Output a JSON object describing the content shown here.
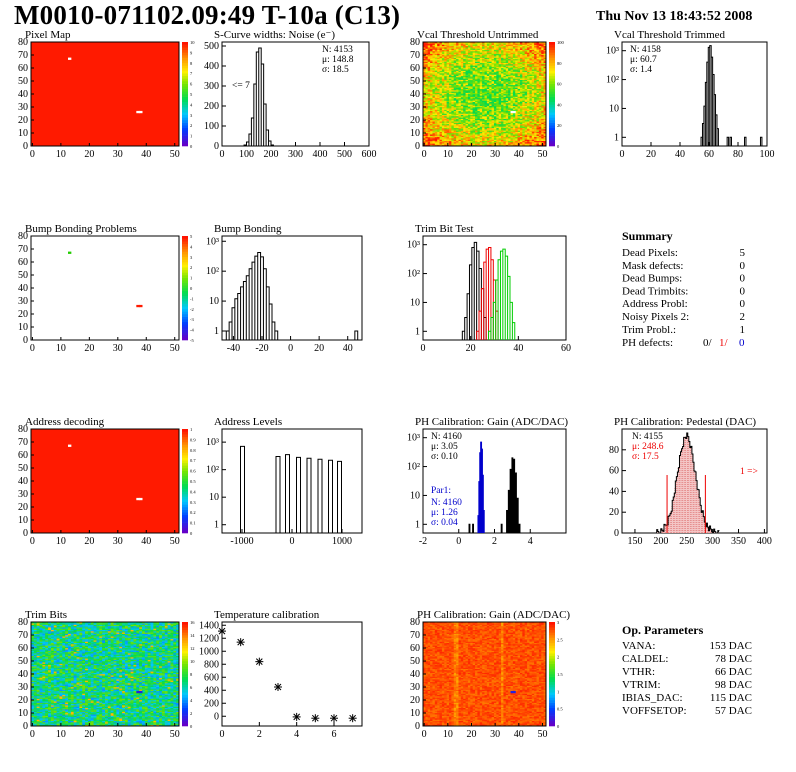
{
  "header": {
    "title": "M0010-071102.09:49 T-10a (C13)",
    "date": "Thu Nov 13 18:43:52 2008"
  },
  "colors": {
    "red": "#ff1a00",
    "black": "#000000",
    "red_line": "#ee0000",
    "green_line": "#00cc00",
    "blue_line": "#0000cc"
  },
  "chart_data": [
    {
      "id": "pixel-map",
      "type": "heatmap",
      "title": "Pixel Map",
      "xlim": [
        0,
        52
      ],
      "ylim": [
        0,
        80
      ],
      "xticks": [
        "0",
        "10",
        "20",
        "30",
        "40",
        "50"
      ],
      "yticks": [
        "0",
        "10",
        "20",
        "30",
        "40",
        "50",
        "60",
        "70",
        "80"
      ],
      "palette_ticks": [
        "0",
        "1",
        "2",
        "3",
        "4",
        "5",
        "6",
        "7",
        "8",
        "9",
        "10"
      ],
      "fill_value": 10,
      "white_pixels": [
        [
          13,
          67
        ],
        [
          37,
          26
        ],
        [
          38,
          26
        ]
      ]
    },
    {
      "id": "scurve",
      "type": "histogram",
      "title": "S-Curve widths: Noise (e⁻)",
      "xlim": [
        0,
        600
      ],
      "ylim": [
        0,
        520
      ],
      "xticks": [
        "0",
        "100",
        "200",
        "300",
        "400",
        "500",
        "600"
      ],
      "yticks": [
        "0",
        "100",
        "200",
        "300",
        "400",
        "500"
      ],
      "stats": [
        "N: 4153",
        "μ: 148.8",
        "σ: 18.5"
      ],
      "annotation": "<= 7",
      "bins": [
        [
          95,
          5
        ],
        [
          105,
          20
        ],
        [
          115,
          60
        ],
        [
          125,
          140
        ],
        [
          135,
          310
        ],
        [
          145,
          470
        ],
        [
          155,
          490
        ],
        [
          165,
          410
        ],
        [
          175,
          210
        ],
        [
          185,
          80
        ],
        [
          195,
          25
        ],
        [
          205,
          5
        ]
      ]
    },
    {
      "id": "vcal-untrimmed",
      "type": "heatmap",
      "title": "Vcal Threshold Untrimmed",
      "xlim": [
        0,
        52
      ],
      "ylim": [
        0,
        80
      ],
      "xticks": [
        "0",
        "10",
        "20",
        "30",
        "40",
        "50"
      ],
      "yticks": [
        "0",
        "10",
        "20",
        "30",
        "40",
        "50",
        "60",
        "70",
        "80"
      ],
      "palette_ticks": [
        "0",
        "20",
        "40",
        "60",
        "80",
        "100"
      ],
      "white_pixels": [
        [
          37,
          26
        ],
        [
          38,
          26
        ]
      ]
    },
    {
      "id": "vcal-trimmed",
      "type": "histogram",
      "title": "Vcal Threshold Trimmed",
      "log": true,
      "xlim": [
        0,
        100
      ],
      "ylim": [
        0.5,
        2000
      ],
      "xticks": [
        "0",
        "20",
        "40",
        "60",
        "80",
        "100"
      ],
      "yticks": [
        "1",
        "10",
        "10²",
        "10³"
      ],
      "stats": [
        "N: 4158",
        "μ: 60.7",
        "σ: 1.4"
      ],
      "bins": [
        [
          55,
          1
        ],
        [
          56,
          3
        ],
        [
          57,
          12
        ],
        [
          58,
          80
        ],
        [
          59,
          400
        ],
        [
          60,
          1300
        ],
        [
          61,
          1500
        ],
        [
          62,
          600
        ],
        [
          63,
          150
        ],
        [
          64,
          30
        ],
        [
          65,
          6
        ],
        [
          66,
          2
        ],
        [
          73,
          1
        ],
        [
          75,
          1
        ],
        [
          85,
          1
        ],
        [
          96,
          1
        ]
      ]
    },
    {
      "id": "bump-problems",
      "type": "heatmap",
      "title": "Bump Bonding Problems",
      "xlim": [
        0,
        52
      ],
      "ylim": [
        0,
        80
      ],
      "xticks": [
        "0",
        "10",
        "20",
        "30",
        "40",
        "50"
      ],
      "yticks": [
        "0",
        "10",
        "20",
        "30",
        "40",
        "50",
        "60",
        "70",
        "80"
      ],
      "palette_ticks": [
        "-5",
        "-4",
        "-3",
        "-2",
        "-1",
        "0",
        "1",
        "2",
        "3",
        "4",
        "5"
      ],
      "green_pixels": [
        [
          13,
          67
        ]
      ],
      "red_pixels": [
        [
          37,
          26
        ],
        [
          38,
          26
        ]
      ]
    },
    {
      "id": "bump-bonding",
      "type": "histogram",
      "title": "Bump Bonding",
      "log": true,
      "xlim": [
        -48,
        50
      ],
      "ylim": [
        0.5,
        1500
      ],
      "xticks": [
        "-40",
        "-20",
        "0",
        "20",
        "40"
      ],
      "yticks": [
        "1",
        "10",
        "10²",
        "10³"
      ],
      "bins": [
        [
          -44,
          1
        ],
        [
          -42,
          2
        ],
        [
          -40,
          6
        ],
        [
          -38,
          12
        ],
        [
          -36,
          18
        ],
        [
          -34,
          30
        ],
        [
          -32,
          45
        ],
        [
          -30,
          70
        ],
        [
          -28,
          120
        ],
        [
          -26,
          200
        ],
        [
          -24,
          320
        ],
        [
          -22,
          420
        ],
        [
          -20,
          300
        ],
        [
          -18,
          120
        ],
        [
          -16,
          30
        ],
        [
          -14,
          8
        ],
        [
          -12,
          2
        ],
        [
          -10,
          1
        ],
        [
          46,
          1
        ]
      ]
    },
    {
      "id": "trim-bit-test",
      "type": "histogram",
      "title": "Trim Bit Test",
      "log": true,
      "xlim": [
        0,
        60
      ],
      "ylim": [
        0.5,
        2000
      ],
      "xticks": [
        "0",
        "20",
        "40",
        "60"
      ],
      "yticks": [
        "1",
        "10",
        "10²",
        "10³"
      ],
      "series": [
        {
          "color": "#000000",
          "bins": [
            [
              17,
              1
            ],
            [
              18,
              3
            ],
            [
              19,
              20
            ],
            [
              20,
              200
            ],
            [
              21,
              800
            ],
            [
              22,
              1200
            ],
            [
              23,
              600
            ],
            [
              24,
              150
            ],
            [
              25,
              30
            ],
            [
              26,
              3
            ]
          ]
        },
        {
          "color": "#ee0000",
          "bins": [
            [
              23,
              1
            ],
            [
              24,
              5
            ],
            [
              25,
              30
            ],
            [
              26,
              250
            ],
            [
              27,
              700
            ],
            [
              28,
              800
            ],
            [
              29,
              300
            ],
            [
              30,
              60
            ],
            [
              31,
              5
            ]
          ]
        },
        {
          "color": "#00cc00",
          "bins": [
            [
              28,
              1
            ],
            [
              29,
              3
            ],
            [
              30,
              10
            ],
            [
              31,
              60
            ],
            [
              32,
              300
            ],
            [
              33,
              600
            ],
            [
              34,
              700
            ],
            [
              35,
              400
            ],
            [
              36,
              80
            ],
            [
              37,
              10
            ],
            [
              38,
              2
            ]
          ]
        }
      ]
    },
    {
      "id": "address-decoding",
      "type": "heatmap",
      "title": "Address decoding",
      "xlim": [
        0,
        52
      ],
      "ylim": [
        0,
        80
      ],
      "xticks": [
        "0",
        "10",
        "20",
        "30",
        "40",
        "50"
      ],
      "yticks": [
        "0",
        "10",
        "20",
        "30",
        "40",
        "50",
        "60",
        "70",
        "80"
      ],
      "palette_ticks": [
        "0",
        "0.1",
        "0.2",
        "0.3",
        "0.4",
        "0.5",
        "0.6",
        "0.7",
        "0.8",
        "0.9",
        "1"
      ],
      "white_pixels": [
        [
          13,
          67
        ],
        [
          37,
          26
        ],
        [
          38,
          26
        ]
      ]
    },
    {
      "id": "address-levels",
      "type": "histogram",
      "title": "Address Levels",
      "log": true,
      "xlim": [
        -1400,
        1400
      ],
      "ylim": [
        0.5,
        3000
      ],
      "xticks": [
        "-1000",
        "0",
        "1000"
      ],
      "yticks": [
        "1",
        "10",
        "10²",
        "10³"
      ],
      "peaks": [
        -990,
        -280,
        -90,
        130,
        340,
        560,
        770,
        950
      ],
      "peak_heights": [
        700,
        300,
        350,
        280,
        260,
        240,
        220,
        200
      ]
    },
    {
      "id": "ph-gain",
      "type": "histogram",
      "title": "PH Calibration: Gain (ADC/DAC)",
      "log": true,
      "xlim": [
        -2,
        6
      ],
      "ylim": [
        0.5,
        2000
      ],
      "xticks": [
        "-2",
        "0",
        "2",
        "4"
      ],
      "yticks": [
        "1",
        "10",
        "10²",
        "10³"
      ],
      "stats": [
        "N: 4160",
        "μ: 3.05",
        "σ: 0.10"
      ],
      "par_label": "Par1:",
      "par_stats": [
        "N: 4160",
        "μ: 1.26",
        "σ: 0.04"
      ],
      "series": [
        {
          "color": "#000000",
          "bins": [
            [
              0.6,
              1
            ],
            [
              0.8,
              1
            ],
            [
              2.4,
              1
            ],
            [
              2.7,
              3
            ],
            [
              2.8,
              15
            ],
            [
              2.9,
              80
            ],
            [
              3.0,
              200
            ],
            [
              3.1,
              180
            ],
            [
              3.2,
              60
            ],
            [
              3.3,
              8
            ],
            [
              3.4,
              1
            ]
          ]
        },
        {
          "color": "#0000cc",
          "bins": [
            [
              1.1,
              2
            ],
            [
              1.15,
              30
            ],
            [
              1.2,
              300
            ],
            [
              1.25,
              700
            ],
            [
              1.3,
              400
            ],
            [
              1.35,
              50
            ],
            [
              1.4,
              3
            ]
          ]
        }
      ]
    },
    {
      "id": "ph-pedestal",
      "type": "histogram",
      "title": "PH Calibration: Pedestal (DAC)",
      "xlim": [
        125,
        405
      ],
      "ylim": [
        0,
        100
      ],
      "xticks": [
        "150",
        "200",
        "250",
        "300",
        "350",
        "400"
      ],
      "yticks": [
        "0",
        "20",
        "40",
        "60",
        "80"
      ],
      "stats": [
        "N: 4155"
      ],
      "stats_red": [
        "μ: 248.6",
        "σ: 17.5"
      ],
      "overflow": "1 =>",
      "cut_lines": [
        212,
        286
      ]
    },
    {
      "id": "trim-bits",
      "type": "heatmap",
      "title": "Trim Bits",
      "xlim": [
        0,
        52
      ],
      "ylim": [
        0,
        80
      ],
      "xticks": [
        "0",
        "10",
        "20",
        "30",
        "40",
        "50"
      ],
      "yticks": [
        "0",
        "10",
        "20",
        "30",
        "40",
        "50",
        "60",
        "70",
        "80"
      ],
      "palette_ticks": [
        "0",
        "2",
        "4",
        "6",
        "8",
        "10",
        "12",
        "14",
        "16"
      ],
      "blue_pixels": [
        [
          37,
          26
        ],
        [
          38,
          26
        ]
      ]
    },
    {
      "id": "temp-calibration",
      "type": "scatter",
      "title": "Temperature calibration",
      "xlim": [
        0,
        7.5
      ],
      "ylim": [
        -150,
        1450
      ],
      "xticks": [
        "0",
        "2",
        "4",
        "6"
      ],
      "yticks": [
        "0",
        "200",
        "400",
        "600",
        "800",
        "1000",
        "1200",
        "1400"
      ],
      "x": [
        0,
        1,
        2,
        3,
        4,
        5,
        6,
        7
      ],
      "y": [
        1310,
        1140,
        840,
        450,
        -10,
        -30,
        -30,
        -30
      ]
    },
    {
      "id": "ph-gain-map",
      "type": "heatmap",
      "title": "PH Calibration: Gain (ADC/DAC)",
      "xlim": [
        0,
        52
      ],
      "ylim": [
        0,
        80
      ],
      "xticks": [
        "0",
        "10",
        "20",
        "30",
        "40",
        "50"
      ],
      "yticks": [
        "0",
        "10",
        "20",
        "30",
        "40",
        "50",
        "60",
        "70",
        "80"
      ],
      "palette_ticks": [
        "0",
        "0.5",
        "1",
        "1.5",
        "2",
        "2.5",
        "3"
      ],
      "blue_pixels": [
        [
          37,
          26
        ],
        [
          38,
          26
        ]
      ]
    }
  ],
  "summary": {
    "title": "Summary",
    "rows": [
      {
        "label": "Dead Pixels:",
        "value": "5"
      },
      {
        "label": "Mask defects:",
        "value": "0"
      },
      {
        "label": "Dead Bumps:",
        "value": "0"
      },
      {
        "label": "Dead Trimbits:",
        "value": "0"
      },
      {
        "label": "Address Probl:",
        "value": "0"
      },
      {
        "label": "Noisy Pixels 2:",
        "value": "2"
      },
      {
        "label": "Trim Probl.:",
        "value": "1"
      }
    ],
    "ph_label": "PH defects:",
    "ph_values": [
      "0/",
      "1/",
      "0"
    ]
  },
  "op_params": {
    "title": "Op. Parameters",
    "rows": [
      {
        "label": "VANA:",
        "value": "153 DAC"
      },
      {
        "label": "CALDEL:",
        "value": "78 DAC"
      },
      {
        "label": "VTHR:",
        "value": "66 DAC"
      },
      {
        "label": "VTRIM:",
        "value": "98 DAC"
      },
      {
        "label": "IBIAS_DAC:",
        "value": "115 DAC"
      },
      {
        "label": "VOFFSETOP:",
        "value": "57 DAC"
      }
    ]
  }
}
